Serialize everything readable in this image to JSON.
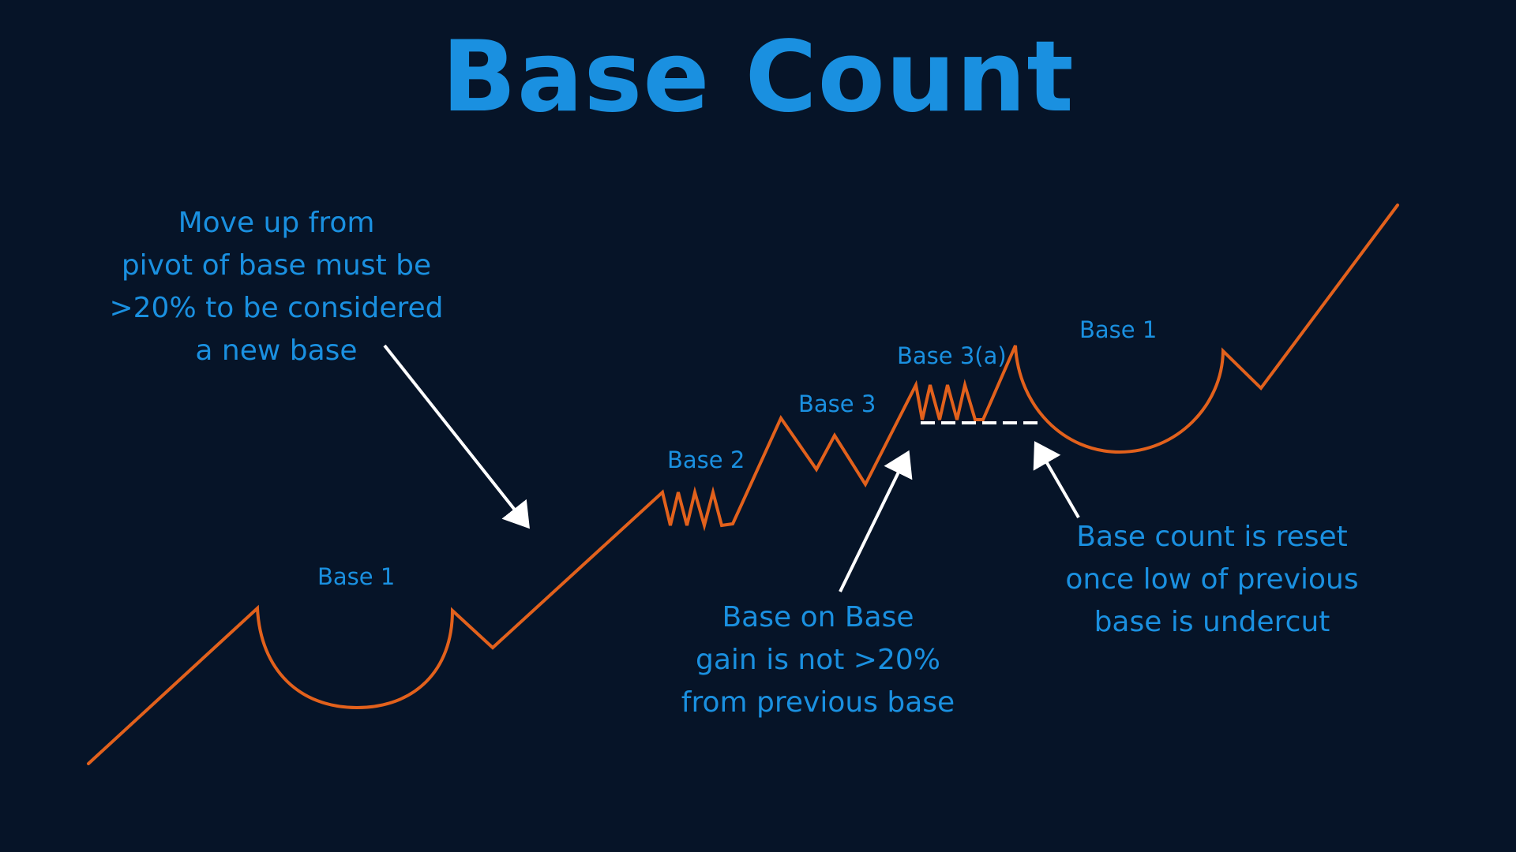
{
  "title": "Base Count",
  "labels": {
    "base1_left": "Base 1",
    "base2": "Base 2",
    "base3": "Base 3",
    "base3a": "Base 3(a)",
    "base1_right": "Base 1"
  },
  "annotations": {
    "move_up": [
      "Move up from",
      "pivot of base must be",
      ">20% to be considered",
      "a new base"
    ],
    "base_on_base": [
      "Base on Base",
      "gain is not >20%",
      "from previous base"
    ],
    "reset": [
      "Base count is reset",
      "once low of previous",
      "base is undercut"
    ]
  },
  "colors": {
    "background": "#061428",
    "text_blue": "#1a90e0",
    "price_line": "#e2611c",
    "arrow": "#ffffff"
  }
}
